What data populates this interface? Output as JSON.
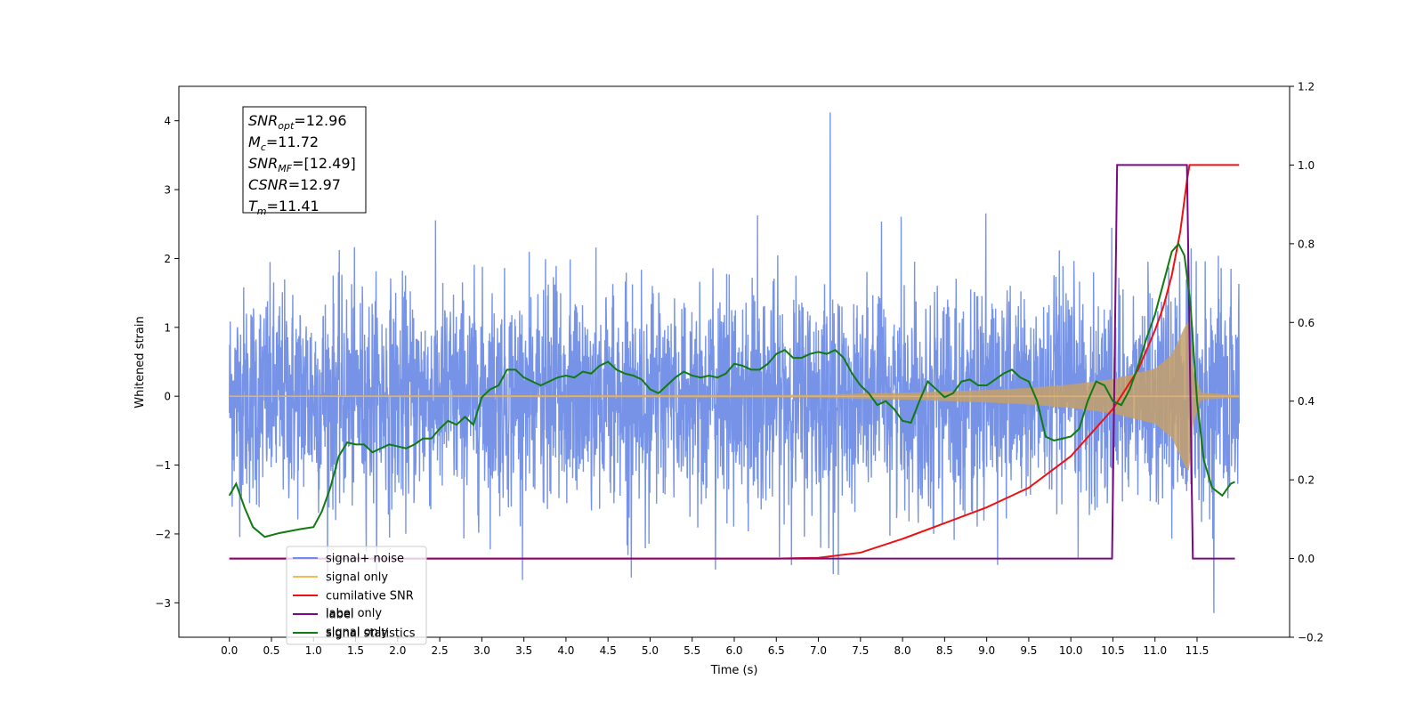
{
  "chart_data": {
    "type": "line",
    "xlabel": "Time (s)",
    "ylabel_left": "Whitened strain",
    "xlim": [
      -0.6,
      12.6
    ],
    "ylim_left": [
      -3.5,
      4.5
    ],
    "ylim_right": [
      -0.2,
      1.2
    ],
    "x_ticks": [
      "0.0",
      "0.5",
      "1.0",
      "1.5",
      "2.0",
      "2.5",
      "3.0",
      "3.5",
      "4.0",
      "4.5",
      "5.0",
      "5.5",
      "6.0",
      "6.5",
      "7.0",
      "7.5",
      "8.0",
      "8.5",
      "9.0",
      "9.5",
      "10.0",
      "10.5",
      "11.0",
      "11.5"
    ],
    "y_ticks_left": [
      "−3",
      "−2",
      "−1",
      "0",
      "1",
      "2",
      "3",
      "4"
    ],
    "y_ticks_right": [
      "−0.2",
      "0.0",
      "0.2",
      "0.4",
      "0.6",
      "0.8",
      "1.0",
      "1.2"
    ],
    "grid": false,
    "legend_position": "lower-left",
    "info_box": [
      {
        "base": "SNR",
        "sub": "opt",
        "value": "=12.96"
      },
      {
        "base": "M",
        "sub": "c",
        "value": "=11.72"
      },
      {
        "base": "SNR",
        "sub": "MF",
        "value": "=[12.49]"
      },
      {
        "base": "CSNR",
        "sub": "",
        "value": "=12.97"
      },
      {
        "base": "T",
        "sub": "m",
        "value": "=11.41"
      }
    ],
    "series": [
      {
        "name": "signal+ noise",
        "axis": "left",
        "color": "#6f8de6",
        "noise": {
          "x_start": 0.0,
          "x_end": 12.0,
          "typical_low": -1.4,
          "typical_high": 1.5,
          "min": -3.15,
          "max": 4.12,
          "max_at": 7.14,
          "min_at": 11.7
        }
      },
      {
        "name": "signal only",
        "axis": "left",
        "color": "#f5b95a",
        "envelope": [
          [
            0.0,
            0.01
          ],
          [
            7.0,
            0.02
          ],
          [
            7.5,
            0.04
          ],
          [
            8.0,
            0.05
          ],
          [
            8.5,
            0.07
          ],
          [
            9.0,
            0.09
          ],
          [
            9.5,
            0.12
          ],
          [
            10.0,
            0.17
          ],
          [
            10.5,
            0.25
          ],
          [
            11.0,
            0.4
          ],
          [
            11.2,
            0.6
          ],
          [
            11.35,
            1.0
          ],
          [
            11.41,
            1.1
          ],
          [
            11.45,
            0.4
          ],
          [
            11.55,
            0.05
          ],
          [
            12.0,
            0.02
          ]
        ]
      },
      {
        "name": "cumilative SNR",
        "axis": "right",
        "color": "#ee1111",
        "points": [
          [
            0.0,
            0.0
          ],
          [
            6.5,
            0.0
          ],
          [
            7.0,
            0.002
          ],
          [
            7.5,
            0.015
          ],
          [
            8.0,
            0.05
          ],
          [
            8.5,
            0.09
          ],
          [
            9.0,
            0.13
          ],
          [
            9.5,
            0.18
          ],
          [
            10.0,
            0.26
          ],
          [
            10.5,
            0.38
          ],
          [
            10.8,
            0.48
          ],
          [
            11.0,
            0.58
          ],
          [
            11.1,
            0.64
          ],
          [
            11.2,
            0.72
          ],
          [
            11.3,
            0.83
          ],
          [
            11.38,
            0.96
          ],
          [
            11.41,
            1.0
          ],
          [
            12.0,
            1.0
          ]
        ]
      },
      {
        "name": "label",
        "axis": "right",
        "color": "#7a0a84",
        "points": [
          [
            0.0,
            0.0
          ],
          [
            10.49,
            0.0
          ],
          [
            10.55,
            1.0
          ],
          [
            11.38,
            1.0
          ],
          [
            11.45,
            0.0
          ],
          [
            11.95,
            0.0
          ]
        ]
      },
      {
        "name": "signal statistics",
        "axis": "right",
        "color": "#117a11",
        "points": [
          [
            0.0,
            0.16
          ],
          [
            0.08,
            0.19
          ],
          [
            0.18,
            0.13
          ],
          [
            0.28,
            0.08
          ],
          [
            0.42,
            0.055
          ],
          [
            0.6,
            0.065
          ],
          [
            0.85,
            0.075
          ],
          [
            1.0,
            0.08
          ],
          [
            1.1,
            0.12
          ],
          [
            1.2,
            0.18
          ],
          [
            1.3,
            0.26
          ],
          [
            1.4,
            0.295
          ],
          [
            1.5,
            0.29
          ],
          [
            1.6,
            0.29
          ],
          [
            1.7,
            0.27
          ],
          [
            1.8,
            0.28
          ],
          [
            1.9,
            0.29
          ],
          [
            2.0,
            0.285
          ],
          [
            2.1,
            0.28
          ],
          [
            2.2,
            0.29
          ],
          [
            2.3,
            0.305
          ],
          [
            2.4,
            0.305
          ],
          [
            2.5,
            0.33
          ],
          [
            2.6,
            0.35
          ],
          [
            2.7,
            0.34
          ],
          [
            2.8,
            0.36
          ],
          [
            2.9,
            0.34
          ],
          [
            3.0,
            0.41
          ],
          [
            3.1,
            0.43
          ],
          [
            3.2,
            0.44
          ],
          [
            3.3,
            0.48
          ],
          [
            3.4,
            0.48
          ],
          [
            3.5,
            0.46
          ],
          [
            3.6,
            0.45
          ],
          [
            3.7,
            0.44
          ],
          [
            3.8,
            0.45
          ],
          [
            3.9,
            0.46
          ],
          [
            4.0,
            0.465
          ],
          [
            4.1,
            0.46
          ],
          [
            4.2,
            0.475
          ],
          [
            4.3,
            0.47
          ],
          [
            4.4,
            0.49
          ],
          [
            4.5,
            0.5
          ],
          [
            4.6,
            0.48
          ],
          [
            4.7,
            0.47
          ],
          [
            4.8,
            0.465
          ],
          [
            4.9,
            0.455
          ],
          [
            5.0,
            0.43
          ],
          [
            5.1,
            0.42
          ],
          [
            5.2,
            0.44
          ],
          [
            5.3,
            0.46
          ],
          [
            5.4,
            0.475
          ],
          [
            5.5,
            0.465
          ],
          [
            5.6,
            0.46
          ],
          [
            5.7,
            0.465
          ],
          [
            5.8,
            0.46
          ],
          [
            5.9,
            0.47
          ],
          [
            6.0,
            0.495
          ],
          [
            6.1,
            0.49
          ],
          [
            6.2,
            0.48
          ],
          [
            6.3,
            0.48
          ],
          [
            6.4,
            0.495
          ],
          [
            6.5,
            0.52
          ],
          [
            6.6,
            0.53
          ],
          [
            6.7,
            0.51
          ],
          [
            6.8,
            0.51
          ],
          [
            6.9,
            0.52
          ],
          [
            7.0,
            0.525
          ],
          [
            7.1,
            0.52
          ],
          [
            7.2,
            0.53
          ],
          [
            7.3,
            0.51
          ],
          [
            7.4,
            0.47
          ],
          [
            7.5,
            0.44
          ],
          [
            7.6,
            0.42
          ],
          [
            7.7,
            0.39
          ],
          [
            7.8,
            0.4
          ],
          [
            7.9,
            0.38
          ],
          [
            8.0,
            0.35
          ],
          [
            8.1,
            0.345
          ],
          [
            8.2,
            0.4
          ],
          [
            8.3,
            0.45
          ],
          [
            8.4,
            0.43
          ],
          [
            8.5,
            0.41
          ],
          [
            8.6,
            0.42
          ],
          [
            8.7,
            0.45
          ],
          [
            8.8,
            0.455
          ],
          [
            8.9,
            0.44
          ],
          [
            9.0,
            0.44
          ],
          [
            9.1,
            0.455
          ],
          [
            9.2,
            0.47
          ],
          [
            9.3,
            0.48
          ],
          [
            9.4,
            0.46
          ],
          [
            9.5,
            0.45
          ],
          [
            9.6,
            0.4
          ],
          [
            9.7,
            0.31
          ],
          [
            9.8,
            0.3
          ],
          [
            9.9,
            0.305
          ],
          [
            10.0,
            0.31
          ],
          [
            10.1,
            0.33
          ],
          [
            10.2,
            0.4
          ],
          [
            10.3,
            0.45
          ],
          [
            10.4,
            0.44
          ],
          [
            10.5,
            0.4
          ],
          [
            10.6,
            0.39
          ],
          [
            10.7,
            0.43
          ],
          [
            10.8,
            0.49
          ],
          [
            10.9,
            0.56
          ],
          [
            11.0,
            0.62
          ],
          [
            11.1,
            0.7
          ],
          [
            11.2,
            0.78
          ],
          [
            11.28,
            0.8
          ],
          [
            11.35,
            0.77
          ],
          [
            11.42,
            0.65
          ],
          [
            11.5,
            0.4
          ],
          [
            11.58,
            0.25
          ],
          [
            11.68,
            0.18
          ],
          [
            11.8,
            0.16
          ],
          [
            11.9,
            0.19
          ],
          [
            11.95,
            0.195
          ]
        ]
      }
    ],
    "legend": [
      {
        "label": "signal+ noise",
        "color": "#6f8de6"
      },
      {
        "label": "signal only",
        "color": "#f5b95a"
      },
      {
        "label": "cumilative SNR",
        "color": "#ee1111"
      },
      {
        "label": "label",
        "color": "#7a0a84"
      },
      {
        "label": "signal statistics",
        "color": "#117a11"
      }
    ],
    "legend_hidden_text": [
      "label only",
      "signal only"
    ]
  }
}
